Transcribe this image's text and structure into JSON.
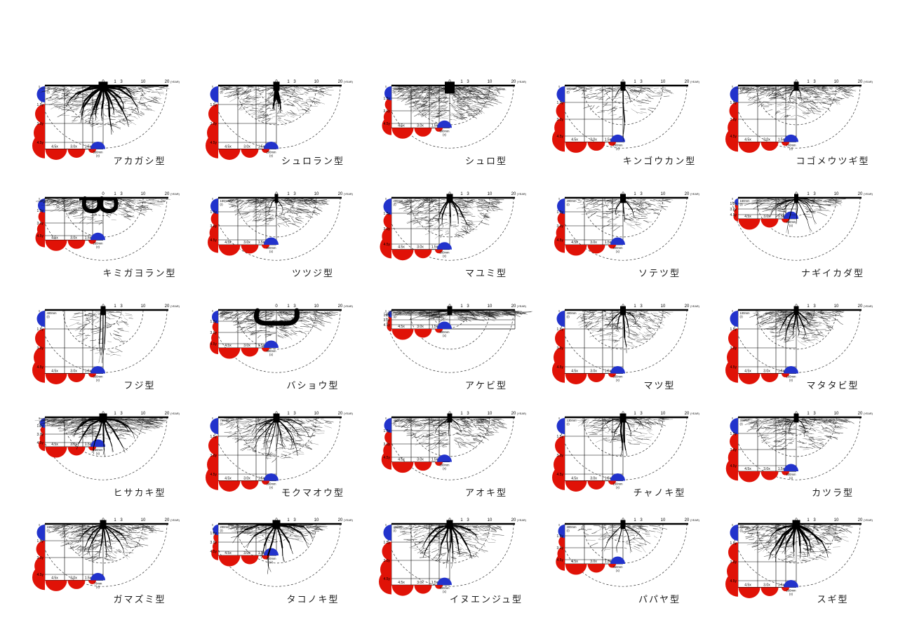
{
  "figure": {
    "title": "root system type diagrams",
    "unit_year": "(YEAR)",
    "year_ticks": [
      "0",
      "1",
      "3",
      "10",
      "20"
    ],
    "depth_labels": [
      "1.5y",
      "3.0y",
      "4.5y"
    ],
    "spread_labels": [
      "4.5x",
      "3.0x",
      "1.5x"
    ],
    "radius_unit_line": "(r)",
    "x_unit_line": "(x)",
    "colors": {
      "red": "#e01207",
      "blue": "#2233cc",
      "ink": "#000000",
      "arc": "#333333"
    }
  },
  "panels": [
    {
      "title": "アカガシ型",
      "r": "450mm",
      "x": "300mm",
      "yu": 27,
      "root": {
        "tw": 13,
        "thick": [
          13,
          58,
          78,
          2.4
        ],
        "tap": [
          0,
          0,
          0
        ],
        "hooks": 0,
        "fine": [
          430,
          82,
          58,
          0.25,
          0
        ]
      }
    },
    {
      "title": "シュロラン型",
      "r": "350mm",
      "x": "200mm",
      "yu": 27,
      "root": {
        "tw": 9,
        "thick": [
          4,
          36,
          10,
          3.2
        ],
        "tap": [
          0,
          0,
          0
        ],
        "hooks": 0,
        "fine": [
          300,
          72,
          48,
          0.4,
          0
        ]
      }
    },
    {
      "title": "シュロ型",
      "r": "300mm",
      "x": "900mm",
      "yu": 18,
      "root": {
        "tw": 14,
        "th": 10,
        "thick": [
          0,
          0,
          0,
          0
        ],
        "tap": [
          0,
          0,
          0
        ],
        "hooks": 0,
        "fine": [
          650,
          72,
          48,
          0.3,
          0
        ]
      }
    },
    {
      "title": "キンゴウカン型",
      "r": "500mm",
      "x": "200mm",
      "yu": 24,
      "root": {
        "tw": 7,
        "thick": [
          2,
          26,
          35,
          1.0
        ],
        "tap": [
          1,
          78,
          1.6
        ],
        "hooks": 0,
        "fine": [
          150,
          68,
          45,
          0.4,
          0
        ]
      }
    },
    {
      "title": "コゴメウツギ型",
      "r": "150mm",
      "x": "150mm",
      "yu": 24,
      "root": {
        "tw": 7,
        "thick": [
          2,
          20,
          25,
          1.2
        ],
        "tap": [
          0,
          0,
          0
        ],
        "hooks": 0,
        "fine": [
          400,
          78,
          42,
          0.4,
          0
        ]
      }
    },
    {
      "title": "キミガヨラン型",
      "r": "200mm",
      "x": "260mm",
      "yu": 18,
      "root": {
        "tw": 0,
        "thick": [
          0,
          0,
          0,
          0
        ],
        "tap": [
          0,
          0,
          0
        ],
        "hooks": 2,
        "fine": [
          330,
          85,
          32,
          0.45,
          0
        ]
      }
    },
    {
      "title": "ツツジ型",
      "r": "150mm",
      "x": "300mm",
      "yu": 20,
      "root": {
        "tw": 5,
        "thick": [
          3,
          18,
          30,
          1.0
        ],
        "tap": [
          0,
          0,
          0
        ],
        "hooks": 0,
        "fine": [
          360,
          68,
          38,
          0.4,
          0
        ]
      }
    },
    {
      "title": "マユミ型",
      "r": "200mm",
      "x": "200mm",
      "yu": 22,
      "root": {
        "tw": 9,
        "thick": [
          5,
          44,
          42,
          1.7
        ],
        "tap": [
          0,
          0,
          0
        ],
        "hooks": 0,
        "fine": [
          360,
          68,
          52,
          0.3,
          0
        ]
      }
    },
    {
      "title": "ソテツ型",
      "r": "200mm",
      "x": "300mm",
      "yu": 20,
      "root": {
        "tw": 8,
        "thick": [
          3,
          30,
          38,
          1.4
        ],
        "tap": [
          0,
          0,
          0
        ],
        "hooks": 0,
        "fine": [
          190,
          64,
          40,
          0.35,
          0
        ]
      }
    },
    {
      "title": "ナギイカダ型",
      "r": "160mm",
      "x": "350mm",
      "yu": 8,
      "root": {
        "tw": 6,
        "thick": [
          9,
          44,
          80,
          0.9
        ],
        "tap": [
          0,
          0,
          0
        ],
        "hooks": 0,
        "fine": [
          140,
          58,
          24,
          0.5,
          0
        ]
      }
    },
    {
      "title": "フジ型",
      "r": "400mm",
      "x": "300mm",
      "yu": 27,
      "root": {
        "tw": 7,
        "thick": [
          0,
          0,
          0,
          0
        ],
        "tap": [
          3,
          72,
          1.2
        ],
        "hooks": 0,
        "fine": [
          110,
          38,
          68,
          0.2,
          0
        ]
      }
    },
    {
      "title": "バショウ型",
      "r": "400mm",
      "x": "400mm",
      "yu": 16,
      "root": {
        "tw": 0,
        "thick": [
          0,
          0,
          0,
          0
        ],
        "tap": [
          0,
          0,
          0
        ],
        "hooks": 1,
        "hook_wide": true,
        "fine": [
          400,
          78,
          38,
          0.4,
          0
        ]
      }
    },
    {
      "title": "アケビ型",
      "r": "70mm",
      "x": "300mm",
      "yu": 7,
      "wide": true,
      "root": {
        "tw": 7,
        "thick": [
          2,
          40,
          88,
          1.2
        ],
        "tap": [
          0,
          0,
          0
        ],
        "hooks": 0,
        "fine": [
          300,
          95,
          11,
          0.7,
          0.25
        ]
      }
    },
    {
      "title": "マツ型",
      "r": "400mm",
      "x": "300mm",
      "yu": 27,
      "root": {
        "tw": 8,
        "thick": [
          4,
          34,
          55,
          1.4
        ],
        "tap": [
          1,
          58,
          2.0
        ],
        "hooks": 0,
        "fine": [
          250,
          62,
          48,
          0.35,
          0
        ]
      }
    },
    {
      "title": "マタタビ型",
      "r": "100mm",
      "x": "100mm",
      "yu": 27,
      "root": {
        "tw": 7,
        "thick": [
          6,
          38,
          42,
          1.7
        ],
        "tap": [
          0,
          0,
          0
        ],
        "hooks": 0,
        "fine": [
          360,
          58,
          44,
          0.3,
          0.1
        ]
      }
    },
    {
      "title": "ヒサカキ型",
      "r": "300mm",
      "x": "150mm",
      "yu": 12,
      "root": {
        "tw": 11,
        "thick": [
          9,
          52,
          84,
          2.0
        ],
        "tap": [
          0,
          0,
          0
        ],
        "hooks": 0,
        "fine": [
          400,
          82,
          28,
          0.5,
          0
        ]
      }
    },
    {
      "title": "モクマオウ型",
      "r": "700mm",
      "x": "300mm",
      "yu": 27,
      "root": {
        "tw": 9,
        "thick": [
          15,
          52,
          68,
          1.0
        ],
        "tap": [
          0,
          0,
          0
        ],
        "hooks": 0,
        "fine": [
          300,
          72,
          58,
          0.25,
          0
        ]
      }
    },
    {
      "title": "アオキ型",
      "r": "400mm",
      "x": "200mm",
      "yu": 19,
      "root": {
        "tw": 7,
        "thick": [
          3,
          26,
          45,
          1.1
        ],
        "tap": [
          0,
          0,
          0
        ],
        "hooks": 0,
        "fine": [
          380,
          76,
          42,
          0.4,
          0
        ]
      }
    },
    {
      "title": "チャノキ型",
      "r": "130mm",
      "x": "100mm",
      "yu": 27,
      "root": {
        "tw": 9,
        "thick": [
          4,
          32,
          85,
          1.1
        ],
        "tap": [
          2,
          52,
          2.3
        ],
        "hooks": 0,
        "fine": [
          200,
          56,
          42,
          0.45,
          0
        ]
      }
    },
    {
      "title": "カツラ型",
      "r": "300mm",
      "x": "500mm",
      "yu": 23,
      "root": {
        "tw": 7,
        "thick": [
          2,
          22,
          40,
          1.0
        ],
        "tap": [
          0,
          0,
          0
        ],
        "hooks": 0,
        "fine": [
          360,
          72,
          46,
          0.35,
          0
        ]
      }
    },
    {
      "title": "ガマズミ型",
      "r": "150mm",
      "x": "70mm",
      "yu": 24,
      "root": {
        "tw": 9,
        "thick": [
          8,
          46,
          62,
          1.7
        ],
        "tap": [
          0,
          0,
          0
        ],
        "hooks": 0,
        "fine": [
          400,
          70,
          50,
          0.3,
          0
        ]
      }
    },
    {
      "title": "タコノキ型",
      "r": "200mm",
      "x": "200mm",
      "yu": 13,
      "root": {
        "tw": 11,
        "thick": [
          8,
          62,
          86,
          2.0
        ],
        "tap": [
          0,
          0,
          0
        ],
        "hooks": 0,
        "fine": [
          170,
          66,
          22,
          0.5,
          0
        ]
      }
    },
    {
      "title": "イヌエンジュ型",
      "r": "400mm",
      "x": "300mm",
      "yu": 26,
      "root": {
        "tw": 9,
        "thick": [
          7,
          52,
          68,
          2.2
        ],
        "tap": [
          2,
          60,
          1.4
        ],
        "hooks": 0,
        "fine": [
          280,
          70,
          52,
          0.3,
          0
        ]
      }
    },
    {
      "title": "パパヤ型",
      "r": "300mm",
      "x": "450mm",
      "yu": 17,
      "root": {
        "tw": 7,
        "thick": [
          4,
          40,
          50,
          1.1
        ],
        "tap": [
          0,
          0,
          0
        ],
        "hooks": 0,
        "fine": [
          110,
          60,
          38,
          0.35,
          0
        ]
      }
    },
    {
      "title": "スギ型",
      "r": "650mm",
      "x": "200mm",
      "yu": 27,
      "root": {
        "tw": 11,
        "thick": [
          10,
          56,
          72,
          2.4
        ],
        "tap": [
          0,
          0,
          0
        ],
        "hooks": 0,
        "fine": [
          400,
          76,
          52,
          0.3,
          0
        ]
      }
    }
  ]
}
